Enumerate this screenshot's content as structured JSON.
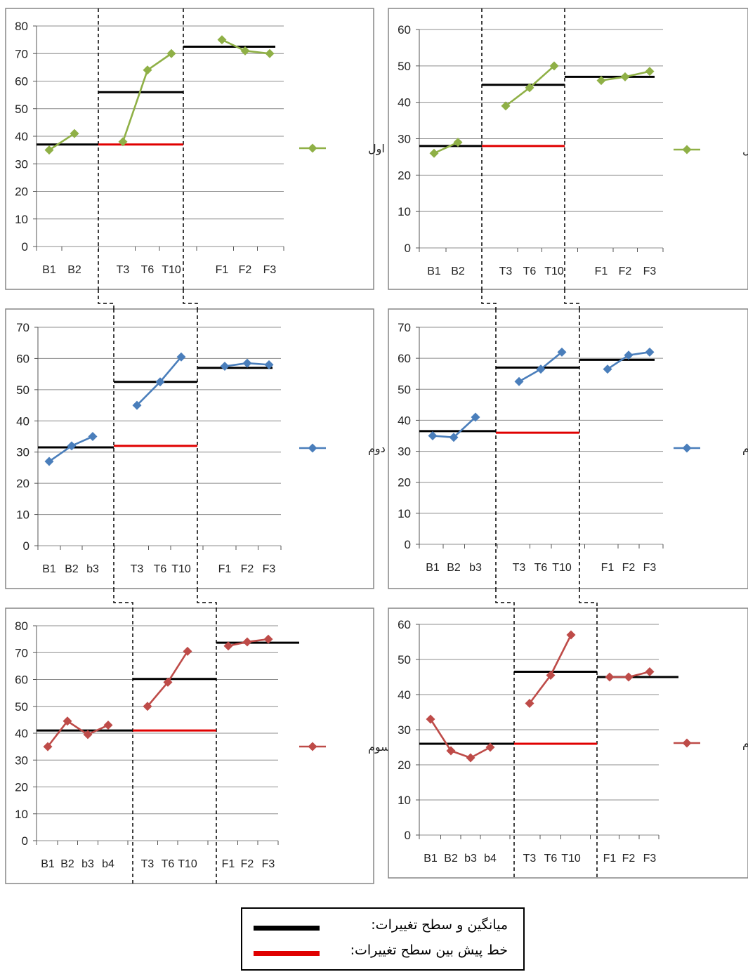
{
  "colors": {
    "green": "#8FB046",
    "blue": "#4A7EBB",
    "red_series": "#BE4B48",
    "mean_line": "#000000",
    "projection_line": "#E00000",
    "grid": "#8C8C8C",
    "panel_border": "#868686"
  },
  "chart_data": [
    {
      "type": "line",
      "id": "left-1",
      "ylim": [
        0,
        80
      ],
      "yticks": [
        0,
        10,
        20,
        30,
        40,
        50,
        60,
        70,
        80
      ],
      "categories": [
        "B1",
        "B2",
        "T3",
        "T6",
        "T10",
        "F1",
        "F2",
        "F3"
      ],
      "phases": [
        [
          "B1",
          "B2"
        ],
        [
          "T3",
          "T6",
          "T10"
        ],
        [
          "F1",
          "F2",
          "F3"
        ]
      ],
      "series": [
        {
          "name": "زوج اول",
          "color": "green",
          "phases": [
            [
              35,
              41
            ],
            [
              38,
              64,
              70
            ],
            [
              75,
              71,
              70
            ]
          ]
        }
      ],
      "mean_lines": [
        37,
        56,
        72.5
      ],
      "projection_line": 37
    },
    {
      "type": "line",
      "id": "right-1",
      "ylim": [
        0,
        60
      ],
      "yticks": [
        0,
        10,
        20,
        30,
        40,
        50,
        60
      ],
      "categories": [
        "B1",
        "B2",
        "T3",
        "T6",
        "T10",
        "F1",
        "F2",
        "F3"
      ],
      "phases": [
        [
          "B1",
          "B2"
        ],
        [
          "T3",
          "T6",
          "T10"
        ],
        [
          "F1",
          "F2",
          "F3"
        ]
      ],
      "series": [
        {
          "name": "زوج اول",
          "color": "green",
          "phases": [
            [
              26,
              29
            ],
            [
              39,
              44,
              50
            ],
            [
              46,
              47,
              48.5
            ]
          ]
        }
      ],
      "mean_lines": [
        28,
        44.8,
        47
      ],
      "projection_line": 28
    },
    {
      "type": "line",
      "id": "left-2",
      "ylim": [
        0,
        70
      ],
      "yticks": [
        0,
        10,
        20,
        30,
        40,
        50,
        60,
        70
      ],
      "categories": [
        "B1",
        "B2",
        "b3",
        "T3",
        "T6",
        "T10",
        "F1",
        "F2",
        "F3"
      ],
      "phases": [
        [
          "B1",
          "B2",
          "b3"
        ],
        [
          "T3",
          "T6",
          "T10"
        ],
        [
          "F1",
          "F2",
          "F3"
        ]
      ],
      "series": [
        {
          "name": "زوج دوم",
          "color": "blue",
          "phases": [
            [
              27,
              32,
              35
            ],
            [
              45,
              52.5,
              60.5
            ],
            [
              57.5,
              58.5,
              58
            ]
          ]
        }
      ],
      "mean_lines": [
        31.5,
        52.5,
        57
      ],
      "projection_line": 32
    },
    {
      "type": "line",
      "id": "right-2",
      "ylim": [
        0,
        70
      ],
      "yticks": [
        0,
        10,
        20,
        30,
        40,
        50,
        60,
        70
      ],
      "categories": [
        "B1",
        "B2",
        "b3",
        "T3",
        "T6",
        "T10",
        "F1",
        "F2",
        "F3"
      ],
      "phases": [
        [
          "B1",
          "B2",
          "b3"
        ],
        [
          "T3",
          "T6",
          "T10"
        ],
        [
          "F1",
          "F2",
          "F3"
        ]
      ],
      "series": [
        {
          "name": "زوج دوم",
          "color": "blue",
          "phases": [
            [
              35,
              34.5,
              41
            ],
            [
              52.5,
              56.5,
              62
            ],
            [
              56.5,
              61,
              62
            ]
          ]
        }
      ],
      "mean_lines": [
        36.5,
        57,
        59.5
      ],
      "projection_line": 36
    },
    {
      "type": "line",
      "id": "left-3",
      "ylim": [
        0,
        80
      ],
      "yticks": [
        0,
        10,
        20,
        30,
        40,
        50,
        60,
        70,
        80
      ],
      "categories": [
        "B1",
        "B2",
        "b3",
        "b4",
        "T3",
        "T6",
        "T10",
        "F1",
        "F2",
        "F3"
      ],
      "phases": [
        [
          "B1",
          "B2",
          "b3",
          "b4"
        ],
        [
          "T3",
          "T6",
          "T10"
        ],
        [
          "F1",
          "F2",
          "F3"
        ]
      ],
      "series": [
        {
          "name": "زوج سوم",
          "color": "red_series",
          "phases": [
            [
              35,
              44.5,
              39.5,
              43
            ],
            [
              50,
              59,
              70.5
            ],
            [
              72.5,
              74,
              75
            ]
          ]
        }
      ],
      "mean_lines": [
        41,
        60.2,
        73.7
      ],
      "projection_line": 41
    },
    {
      "type": "line",
      "id": "right-3",
      "ylim": [
        0,
        60
      ],
      "yticks": [
        0,
        10,
        20,
        30,
        40,
        50,
        60
      ],
      "categories": [
        "B1",
        "B2",
        "b3",
        "b4",
        "T3",
        "T6",
        "T10",
        "F1",
        "F2",
        "F3"
      ],
      "phases": [
        [
          "B1",
          "B2",
          "b3",
          "b4"
        ],
        [
          "T3",
          "T6",
          "T10"
        ],
        [
          "F1",
          "F2",
          "F3"
        ]
      ],
      "series": [
        {
          "name": "زوج سوم",
          "color": "red_series",
          "phases": [
            [
              33,
              24,
              22,
              25
            ],
            [
              37.5,
              45.5,
              57
            ],
            [
              45,
              45,
              46.5
            ]
          ]
        }
      ],
      "mean_lines": [
        26,
        46.5,
        45
      ],
      "projection_line": 26
    }
  ],
  "legend": {
    "mean_label": "میانگین و سطح تغییرات:",
    "projection_label": "خط پیش بین سطح تغییرات:"
  }
}
